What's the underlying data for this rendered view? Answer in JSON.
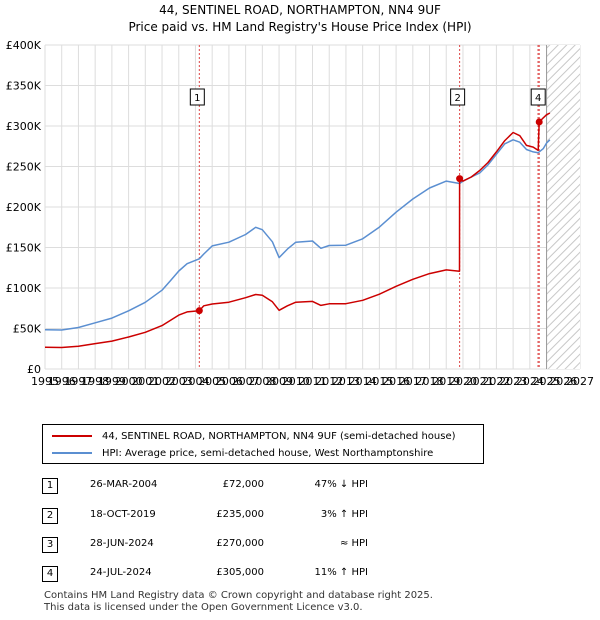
{
  "title_line1": "44, SENTINEL ROAD, NORTHAMPTON, NN4 9UF",
  "title_line2": "Price paid vs. HM Land Registry's House Price Index (HPI)",
  "chart_data": {
    "type": "line",
    "title": "44, SENTINEL ROAD, NORTHAMPTON, NN4 9UF — Price paid vs. HM Land Registry's House Price Index (HPI)",
    "xlim": [
      1995,
      2027
    ],
    "ylim": [
      0,
      400000
    ],
    "x_ticks": [
      1995,
      1996,
      1997,
      1998,
      1999,
      2000,
      2001,
      2002,
      2003,
      2004,
      2005,
      2006,
      2007,
      2008,
      2009,
      2010,
      2011,
      2012,
      2013,
      2014,
      2015,
      2016,
      2017,
      2018,
      2019,
      2020,
      2021,
      2022,
      2023,
      2024,
      2025,
      2026,
      2027
    ],
    "y_ticks": [
      {
        "value": 0,
        "label": "£0"
      },
      {
        "value": 50000,
        "label": "£50K"
      },
      {
        "value": 100000,
        "label": "£100K"
      },
      {
        "value": 150000,
        "label": "£150K"
      },
      {
        "value": 200000,
        "label": "£200K"
      },
      {
        "value": 250000,
        "label": "£250K"
      },
      {
        "value": 300000,
        "label": "£300K"
      },
      {
        "value": 350000,
        "label": "£350K"
      },
      {
        "value": 400000,
        "label": "£400K"
      }
    ],
    "forecast_start": 2025.0,
    "series": [
      {
        "name": "44, SENTINEL ROAD, NORTHAMPTON, NN4 9UF (semi-detached house)",
        "color": "#cc0000",
        "points": [
          [
            1995.0,
            26800
          ],
          [
            1996.0,
            26600
          ],
          [
            1997.0,
            28200
          ],
          [
            1998.0,
            31400
          ],
          [
            1999.0,
            34500
          ],
          [
            2000.0,
            39500
          ],
          [
            2001.0,
            45300
          ],
          [
            2002.0,
            53600
          ],
          [
            2002.5,
            60000
          ],
          [
            2003.0,
            66500
          ],
          [
            2003.5,
            70500
          ],
          [
            2004.23,
            72000
          ],
          [
            2004.5,
            78000
          ],
          [
            2005.0,
            80200
          ],
          [
            2006.0,
            82500
          ],
          [
            2007.0,
            88000
          ],
          [
            2007.6,
            92000
          ],
          [
            2008.0,
            91000
          ],
          [
            2008.6,
            83000
          ],
          [
            2009.0,
            72500
          ],
          [
            2009.5,
            78000
          ],
          [
            2010.0,
            82500
          ],
          [
            2011.0,
            83500
          ],
          [
            2011.5,
            78500
          ],
          [
            2012.0,
            80500
          ],
          [
            2013.0,
            80600
          ],
          [
            2014.0,
            84800
          ],
          [
            2015.0,
            92400
          ],
          [
            2016.0,
            102100
          ],
          [
            2017.0,
            110700
          ],
          [
            2018.0,
            117800
          ],
          [
            2019.0,
            122300
          ],
          [
            2019.79,
            120800
          ],
          [
            2019.8,
            235000
          ],
          [
            2020.0,
            232000
          ],
          [
            2020.5,
            237000
          ],
          [
            2021.0,
            245000
          ],
          [
            2021.5,
            255000
          ],
          [
            2022.0,
            268000
          ],
          [
            2022.5,
            282000
          ],
          [
            2023.0,
            292000
          ],
          [
            2023.4,
            288000
          ],
          [
            2023.8,
            276000
          ],
          [
            2024.2,
            274000
          ],
          [
            2024.49,
            270000
          ],
          [
            2024.5,
            270000
          ],
          [
            2024.56,
            305000
          ],
          [
            2024.8,
            310000
          ],
          [
            2025.0,
            314000
          ],
          [
            2025.2,
            316000
          ]
        ]
      },
      {
        "name": "HPI: Average price, semi-detached house, West Northamptonshire",
        "color": "#5b8fd1",
        "points": [
          [
            1995.0,
            48500
          ],
          [
            1996.0,
            48200
          ],
          [
            1997.0,
            51200
          ],
          [
            1998.0,
            57000
          ],
          [
            1999.0,
            62800
          ],
          [
            2000.0,
            71800
          ],
          [
            2001.0,
            82300
          ],
          [
            2002.0,
            97300
          ],
          [
            2002.5,
            109000
          ],
          [
            2003.0,
            121000
          ],
          [
            2003.5,
            130000
          ],
          [
            2004.23,
            136000
          ],
          [
            2004.5,
            142000
          ],
          [
            2005.0,
            152000
          ],
          [
            2006.0,
            156500
          ],
          [
            2007.0,
            166000
          ],
          [
            2007.6,
            175000
          ],
          [
            2008.0,
            172000
          ],
          [
            2008.6,
            157000
          ],
          [
            2009.0,
            137500
          ],
          [
            2009.5,
            148000
          ],
          [
            2010.0,
            156500
          ],
          [
            2011.0,
            158000
          ],
          [
            2011.5,
            149000
          ],
          [
            2012.0,
            152500
          ],
          [
            2013.0,
            152800
          ],
          [
            2014.0,
            160700
          ],
          [
            2015.0,
            175200
          ],
          [
            2016.0,
            193600
          ],
          [
            2017.0,
            209900
          ],
          [
            2018.0,
            223400
          ],
          [
            2019.0,
            232000
          ],
          [
            2019.8,
            229000
          ],
          [
            2020.0,
            232000
          ],
          [
            2020.5,
            237000
          ],
          [
            2021.0,
            242000
          ],
          [
            2021.5,
            252000
          ],
          [
            2022.0,
            265000
          ],
          [
            2022.5,
            278000
          ],
          [
            2023.0,
            283000
          ],
          [
            2023.4,
            280000
          ],
          [
            2023.8,
            271000
          ],
          [
            2024.2,
            268000
          ],
          [
            2024.5,
            267000
          ],
          [
            2024.8,
            272000
          ],
          [
            2025.0,
            279000
          ],
          [
            2025.2,
            283000
          ]
        ]
      }
    ],
    "sales": [
      {
        "num": "1",
        "year": 2004.23,
        "price": 72000,
        "date": "26-MAR-2004",
        "price_label": "£72,000",
        "hpi": "47% ↓ HPI"
      },
      {
        "num": "2",
        "year": 2019.8,
        "price": 235000,
        "date": "18-OCT-2019",
        "price_label": "£235,000",
        "hpi": "3% ↑ HPI"
      },
      {
        "num": "3",
        "year": 2024.49,
        "price": 270000,
        "date": "28-JUN-2024",
        "price_label": "£270,000",
        "hpi": "≈ HPI"
      },
      {
        "num": "4",
        "year": 2024.56,
        "price": 305000,
        "date": "24-JUL-2024",
        "price_label": "£305,000",
        "hpi": "11% ↑ HPI"
      }
    ]
  },
  "legend": {
    "property": "44, SENTINEL ROAD, NORTHAMPTON, NN4 9UF (semi-detached house)",
    "hpi": "HPI: Average price, semi-detached house, West Northamptonshire",
    "property_color": "#cc0000",
    "hpi_color": "#5b8fd1"
  },
  "footer": {
    "line1": "Contains HM Land Registry data © Crown copyright and database right 2025.",
    "line2": "This data is licensed under the Open Government Licence v3.0."
  }
}
